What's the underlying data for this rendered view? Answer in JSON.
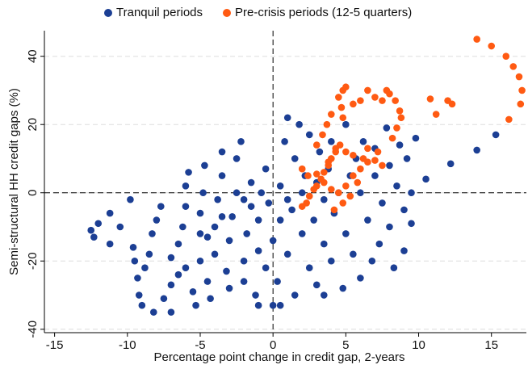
{
  "chart_data": {
    "type": "scatter",
    "x_label": "Percentage point change in credit gap, 2-years",
    "y_label": "Semi-structural HH credit gaps (%)",
    "xlim": [
      -15.7,
      17.4
    ],
    "ylim": [
      -41,
      47.5
    ],
    "xticks": [
      -15,
      -10,
      -5,
      0,
      5,
      10,
      15
    ],
    "yticks": [
      -40,
      -20,
      0,
      20,
      40
    ],
    "grid": true,
    "legend": "top",
    "series": [
      {
        "name": "Tranquil periods",
        "color": "#1c3f94",
        "x": [
          -12.5,
          -12.3,
          -12,
          -11.2,
          -11.2,
          -9.8,
          -9.6,
          -9.5,
          -9.3,
          -9.2,
          -9,
          -8.8,
          -8.5,
          -8.3,
          -8,
          -7.7,
          -8.2,
          -7.5,
          -7,
          -7,
          -6.5,
          -6.5,
          -6.2,
          -6,
          -6,
          -5.8,
          -5.5,
          -5.3,
          -5,
          -5,
          -5,
          -4.8,
          -4.7,
          -4.5,
          -4.3,
          -4,
          -4,
          -3.8,
          -3.5,
          -3.5,
          -3.2,
          -3,
          -3,
          -2.8,
          -2.5,
          -2.5,
          -2.2,
          -2,
          -2,
          -1.8,
          -1.5,
          -1.5,
          -1.2,
          -1,
          -1,
          -0.8,
          -0.5,
          -0.5,
          -0.3,
          0,
          0,
          0.3,
          0.5,
          0.5,
          0.8,
          1,
          1,
          1.3,
          1.5,
          1.5,
          1.8,
          2,
          2,
          2.2,
          2.5,
          2.5,
          2.8,
          3,
          3,
          3.2,
          3.5,
          3.5,
          3.8,
          4,
          4,
          4.2,
          4.5,
          4.8,
          5,
          5,
          5.3,
          5.5,
          5.7,
          6,
          6,
          6.2,
          6.5,
          6.8,
          7,
          7,
          7.3,
          7.5,
          7.8,
          8,
          8,
          8.3,
          8.5,
          8.7,
          9,
          9,
          9.2,
          9.5,
          9.5,
          9.8,
          10.5,
          12.2,
          14,
          15.3,
          -10.5,
          -7,
          -3.5,
          -2,
          1,
          3.5,
          -1,
          0.5,
          -4.5,
          -6
        ],
        "values": [
          -11,
          -13,
          -9,
          -6,
          -15,
          -2,
          -16,
          -20,
          -25,
          -30,
          -33,
          -22,
          -18,
          -12,
          -8,
          -4,
          -35,
          -31,
          -27,
          -35,
          -24,
          -15,
          -10,
          -4,
          2,
          6,
          -29,
          -33,
          -20,
          -12,
          -6,
          0,
          8,
          -26,
          -31,
          -18,
          -10,
          -2,
          5,
          12,
          -23,
          -28,
          -14,
          -7,
          0,
          10,
          15,
          -20,
          -26,
          -12,
          -4,
          3,
          -30,
          -17,
          -8,
          0,
          -22,
          7,
          -3,
          -14,
          -33,
          -26,
          -8,
          2,
          15,
          22,
          -18,
          -5,
          10,
          -30,
          20,
          -12,
          0,
          5,
          -22,
          17,
          -8,
          3,
          -27,
          12,
          -15,
          -2,
          7,
          -20,
          15,
          -6,
          0,
          -28,
          -12,
          20,
          5,
          -18,
          10,
          -25,
          0,
          15,
          -8,
          -20,
          5,
          13,
          -15,
          -3,
          19,
          -10,
          8,
          -22,
          2,
          14,
          -5,
          -17,
          10,
          0,
          -9,
          16,
          4,
          8.5,
          12.5,
          17,
          -10,
          -19,
          -7,
          -2,
          -2,
          -30,
          -33,
          -33,
          -13,
          -22
        ]
      },
      {
        "name": "Pre-crisis periods (12-5 quarters)",
        "color": "#ff5a12",
        "x": [
          2,
          2.3,
          2.5,
          2.8,
          3,
          3.3,
          3.5,
          3.8,
          4,
          4.3,
          4.6,
          2,
          2.4,
          3,
          3.5,
          4,
          4.5,
          5,
          5.5,
          6,
          6.5,
          7,
          7.5,
          3,
          3.4,
          3.7,
          4,
          4.3,
          5,
          5.5,
          6.2,
          4.5,
          4.7,
          4.8,
          5,
          4.8,
          5.5,
          6,
          6.5,
          7,
          7.5,
          7.8,
          8,
          8.4,
          8.7,
          8.8,
          8.5,
          8.2,
          10.8,
          11.2,
          12,
          12.3,
          14,
          15,
          16,
          16.5,
          16.9,
          17.1,
          17,
          16.2,
          4.2,
          4.8,
          5.3,
          3.8,
          5.8,
          6.5,
          7.2
        ],
        "values": [
          -4,
          -3,
          -1,
          1,
          2,
          4,
          6,
          8,
          10,
          12,
          14,
          7,
          5,
          5.5,
          3,
          1,
          0,
          2,
          5,
          7,
          9,
          9.5,
          8,
          14,
          17,
          20,
          23,
          13,
          12,
          11,
          10,
          28,
          25,
          30,
          31,
          22,
          26,
          27,
          30,
          28,
          27,
          30,
          29,
          27,
          24,
          22,
          19,
          16,
          27.5,
          23,
          27,
          26,
          45,
          43,
          40,
          37,
          34,
          30,
          26,
          21.5,
          -5,
          -3,
          -1,
          9,
          3,
          13,
          12
        ]
      }
    ]
  }
}
